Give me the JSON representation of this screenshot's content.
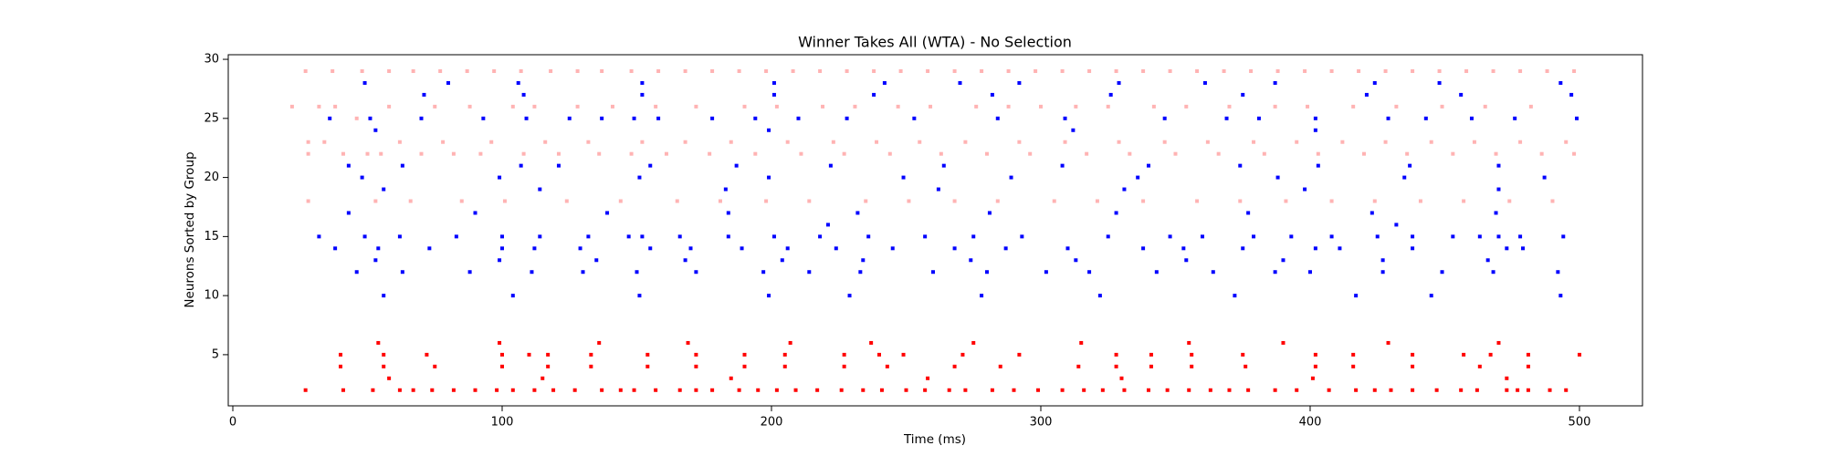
{
  "chart_data": {
    "type": "scatter",
    "title": "Winner Takes All (WTA) - No Selection",
    "x_label": "Time (ms)",
    "y_label": "Neurons Sorted by Group",
    "xlim": [
      -1.7,
      523.4
    ],
    "ylim": [
      0.67,
      30.39
    ],
    "xticks": [
      0,
      100,
      200,
      300,
      400,
      500
    ],
    "yticks": [
      5,
      10,
      15,
      20,
      25,
      30
    ],
    "series": [
      {
        "color": "#ffb3b3",
        "x": [
          27,
          37,
          48,
          58,
          67,
          77,
          87,
          97,
          107,
          118,
          128,
          137,
          148,
          158,
          168,
          178,
          188,
          198,
          208,
          218,
          228,
          238,
          248,
          258,
          268,
          278,
          288,
          298,
          308,
          318,
          328,
          338,
          348,
          358,
          368,
          378,
          388,
          398,
          408,
          418,
          428,
          438,
          448,
          458,
          468,
          478,
          488,
          498
        ],
        "values": [
          29,
          29,
          29,
          29,
          29,
          29,
          29,
          29,
          29,
          29,
          29,
          29,
          29,
          29,
          29,
          29,
          29,
          29,
          29,
          29,
          29,
          29,
          29,
          29,
          29,
          29,
          29,
          29,
          29,
          29,
          29,
          29,
          29,
          29,
          29,
          29,
          29,
          29,
          29,
          29,
          29,
          29,
          29,
          29,
          29,
          29,
          29,
          29
        ]
      },
      {
        "color": "#ffb3b3",
        "x": [
          22,
          28,
          28,
          28,
          32,
          34,
          38,
          41,
          46,
          50,
          53,
          55,
          58,
          62,
          66,
          70,
          75,
          78,
          82,
          85,
          88,
          92,
          96,
          101,
          104,
          108,
          112,
          116,
          121,
          124,
          128,
          132,
          136,
          141,
          144,
          148,
          152,
          157,
          161,
          165,
          168,
          172,
          177,
          181,
          185,
          190,
          194,
          198,
          202,
          206,
          211,
          214,
          219,
          223,
          227,
          231,
          235,
          239,
          244,
          247,
          251,
          255,
          259,
          263,
          268,
          272,
          276,
          280,
          284,
          288,
          292,
          296,
          300,
          305,
          309,
          313,
          317,
          321,
          325,
          329,
          333,
          338,
          342,
          346,
          350,
          354,
          358,
          362,
          366,
          370,
          374,
          379,
          383,
          387,
          391,
          395,
          399,
          403,
          408,
          412,
          416,
          420,
          424,
          428,
          432,
          436,
          441,
          445,
          449,
          453,
          457,
          461,
          465,
          469,
          474,
          478,
          482,
          486,
          490,
          495,
          498
        ],
        "values": [
          26,
          23,
          22,
          18,
          26,
          23,
          26,
          22,
          25,
          22,
          18,
          22,
          26,
          23,
          18,
          22,
          26,
          23,
          22,
          18,
          26,
          22,
          23,
          18,
          26,
          22,
          26,
          23,
          22,
          18,
          26,
          23,
          22,
          26,
          18,
          22,
          23,
          26,
          22,
          18,
          23,
          26,
          22,
          18,
          23,
          26,
          22,
          18,
          26,
          23,
          22,
          18,
          26,
          23,
          22,
          26,
          18,
          23,
          22,
          26,
          18,
          23,
          26,
          22,
          18,
          23,
          26,
          22,
          18,
          26,
          23,
          22,
          26,
          18,
          23,
          26,
          22,
          18,
          26,
          23,
          22,
          18,
          26,
          23,
          22,
          26,
          18,
          23,
          22,
          26,
          18,
          23,
          22,
          26,
          18,
          23,
          26,
          22,
          18,
          23,
          26,
          22,
          18,
          23,
          26,
          22,
          18,
          23,
          26,
          22,
          18,
          23,
          26,
          22,
          18,
          23,
          26,
          22,
          18,
          23,
          22
        ]
      },
      {
        "color": "#ff0000",
        "x": [
          27,
          41,
          52,
          62,
          67,
          74,
          82,
          90,
          98,
          104,
          112,
          119,
          127,
          137,
          144,
          149,
          157,
          166,
          172,
          178,
          188,
          195,
          202,
          209,
          217,
          226,
          234,
          241,
          250,
          257,
          266,
          272,
          282,
          290,
          299,
          308,
          316,
          323,
          331,
          340,
          347,
          355,
          363,
          370,
          377,
          387,
          395,
          407,
          417,
          424,
          430,
          438,
          447,
          456,
          462,
          473,
          477,
          481,
          489,
          495
        ],
        "values": [
          2,
          2,
          2,
          2,
          2,
          2,
          2,
          2,
          2,
          2,
          2,
          2,
          2,
          2,
          2,
          2,
          2,
          2,
          2,
          2,
          2,
          2,
          2,
          2,
          2,
          2,
          2,
          2,
          2,
          2,
          2,
          2,
          2,
          2,
          2,
          2,
          2,
          2,
          2,
          2,
          2,
          2,
          2,
          2,
          2,
          2,
          2,
          2,
          2,
          2,
          2,
          2,
          2,
          2,
          2,
          2,
          2,
          2,
          2,
          2
        ]
      },
      {
        "color": "#ff0000",
        "x": [
          58,
          115,
          185,
          258,
          330,
          401,
          473
        ],
        "values": [
          3,
          3,
          3,
          3,
          3,
          3,
          3
        ]
      },
      {
        "color": "#ff0000",
        "x": [
          40,
          56,
          75,
          100,
          117,
          133,
          154,
          172,
          190,
          205,
          227,
          243,
          268,
          285,
          314,
          328,
          341,
          356,
          376,
          402,
          416,
          438,
          463,
          481
        ],
        "values": [
          4,
          4,
          4,
          4,
          4,
          4,
          4,
          4,
          4,
          4,
          4,
          4,
          4,
          4,
          4,
          4,
          4,
          4,
          4,
          4,
          4,
          4,
          4,
          4
        ]
      },
      {
        "color": "#ff0000",
        "x": [
          40,
          56,
          72,
          100,
          110,
          117,
          133,
          154,
          172,
          190,
          205,
          227,
          240,
          249,
          271,
          292,
          328,
          341,
          356,
          375,
          402,
          416,
          438,
          457,
          467,
          481,
          500
        ],
        "values": [
          5,
          5,
          5,
          5,
          5,
          5,
          5,
          5,
          5,
          5,
          5,
          5,
          5,
          5,
          5,
          5,
          5,
          5,
          5,
          5,
          5,
          5,
          5,
          5,
          5,
          5,
          5
        ]
      },
      {
        "color": "#ff0000",
        "x": [
          54,
          99,
          136,
          169,
          207,
          237,
          275,
          315,
          355,
          390,
          429,
          470
        ],
        "values": [
          6,
          6,
          6,
          6,
          6,
          6,
          6,
          6,
          6,
          6,
          6,
          6
        ]
      },
      {
        "color": "#0000ff",
        "x": [
          32,
          36,
          38,
          43,
          43,
          46,
          48,
          49,
          49,
          51,
          53,
          53,
          54,
          56,
          56,
          62,
          63,
          63,
          70,
          71,
          73,
          80,
          83,
          88,
          90,
          93,
          99,
          99,
          100,
          100,
          104,
          106,
          107,
          108,
          109,
          111,
          112,
          114,
          114,
          121,
          125,
          129,
          130,
          132,
          135,
          137,
          139,
          147,
          149,
          150,
          151,
          151,
          152,
          152,
          152,
          155,
          155,
          158,
          166,
          168,
          170,
          172,
          178,
          183,
          184,
          184,
          187,
          189,
          194,
          197,
          199,
          199,
          199,
          201,
          201,
          201,
          204,
          206,
          210,
          214,
          218,
          221,
          222,
          224,
          228,
          229,
          232,
          233,
          234,
          236,
          238,
          242,
          245,
          249,
          253,
          257,
          260,
          262,
          264,
          268,
          270,
          274,
          275,
          278,
          280,
          281,
          282,
          284,
          287,
          289,
          292,
          293,
          302,
          308,
          309,
          310,
          312,
          313,
          318,
          322,
          325,
          326,
          328,
          329,
          331,
          336,
          338,
          340,
          343,
          346,
          348,
          353,
          354,
          360,
          361,
          364,
          369,
          372,
          374,
          375,
          375,
          377,
          379,
          381,
          387,
          387,
          388,
          390,
          393,
          398,
          400,
          402,
          402,
          402,
          403,
          408,
          411,
          417,
          421,
          423,
          424,
          425,
          427,
          427,
          429,
          432,
          435,
          437,
          438,
          438,
          443,
          445,
          448,
          449,
          453,
          456,
          460,
          463,
          466,
          468,
          469,
          470,
          470,
          470,
          473,
          476,
          478,
          479,
          487,
          492,
          493,
          493,
          494,
          497,
          499
        ],
        "values": [
          15,
          25,
          14,
          17,
          21,
          12,
          20,
          28,
          15,
          25,
          13,
          24,
          14,
          10,
          19,
          15,
          21,
          12,
          25,
          27,
          14,
          28,
          15,
          12,
          17,
          25,
          20,
          13,
          15,
          14,
          10,
          28,
          21,
          27,
          25,
          12,
          14,
          15,
          19,
          21,
          25,
          14,
          12,
          15,
          13,
          25,
          17,
          15,
          25,
          12,
          10,
          20,
          28,
          27,
          15,
          14,
          21,
          25,
          15,
          13,
          14,
          12,
          25,
          19,
          17,
          15,
          21,
          14,
          25,
          12,
          20,
          10,
          24,
          28,
          27,
          15,
          13,
          14,
          25,
          12,
          15,
          16,
          21,
          14,
          25,
          10,
          17,
          12,
          13,
          15,
          27,
          28,
          14,
          20,
          25,
          15,
          12,
          19,
          21,
          14,
          28,
          13,
          15,
          10,
          12,
          17,
          27,
          25,
          14,
          20,
          28,
          15,
          12,
          21,
          25,
          14,
          24,
          13,
          12,
          10,
          15,
          27,
          17,
          28,
          19,
          20,
          14,
          21,
          12,
          25,
          15,
          14,
          13,
          15,
          28,
          12,
          25,
          10,
          21,
          14,
          27,
          17,
          15,
          25,
          12,
          28,
          20,
          13,
          15,
          19,
          12,
          14,
          25,
          24,
          21,
          15,
          14,
          10,
          27,
          17,
          28,
          15,
          12,
          13,
          25,
          16,
          20,
          21,
          14,
          15,
          25,
          10,
          28,
          12,
          15,
          27,
          25,
          15,
          13,
          12,
          17,
          19,
          21,
          15,
          14,
          25,
          15,
          14,
          20,
          12,
          10,
          28,
          15,
          27,
          25
        ]
      }
    ]
  }
}
